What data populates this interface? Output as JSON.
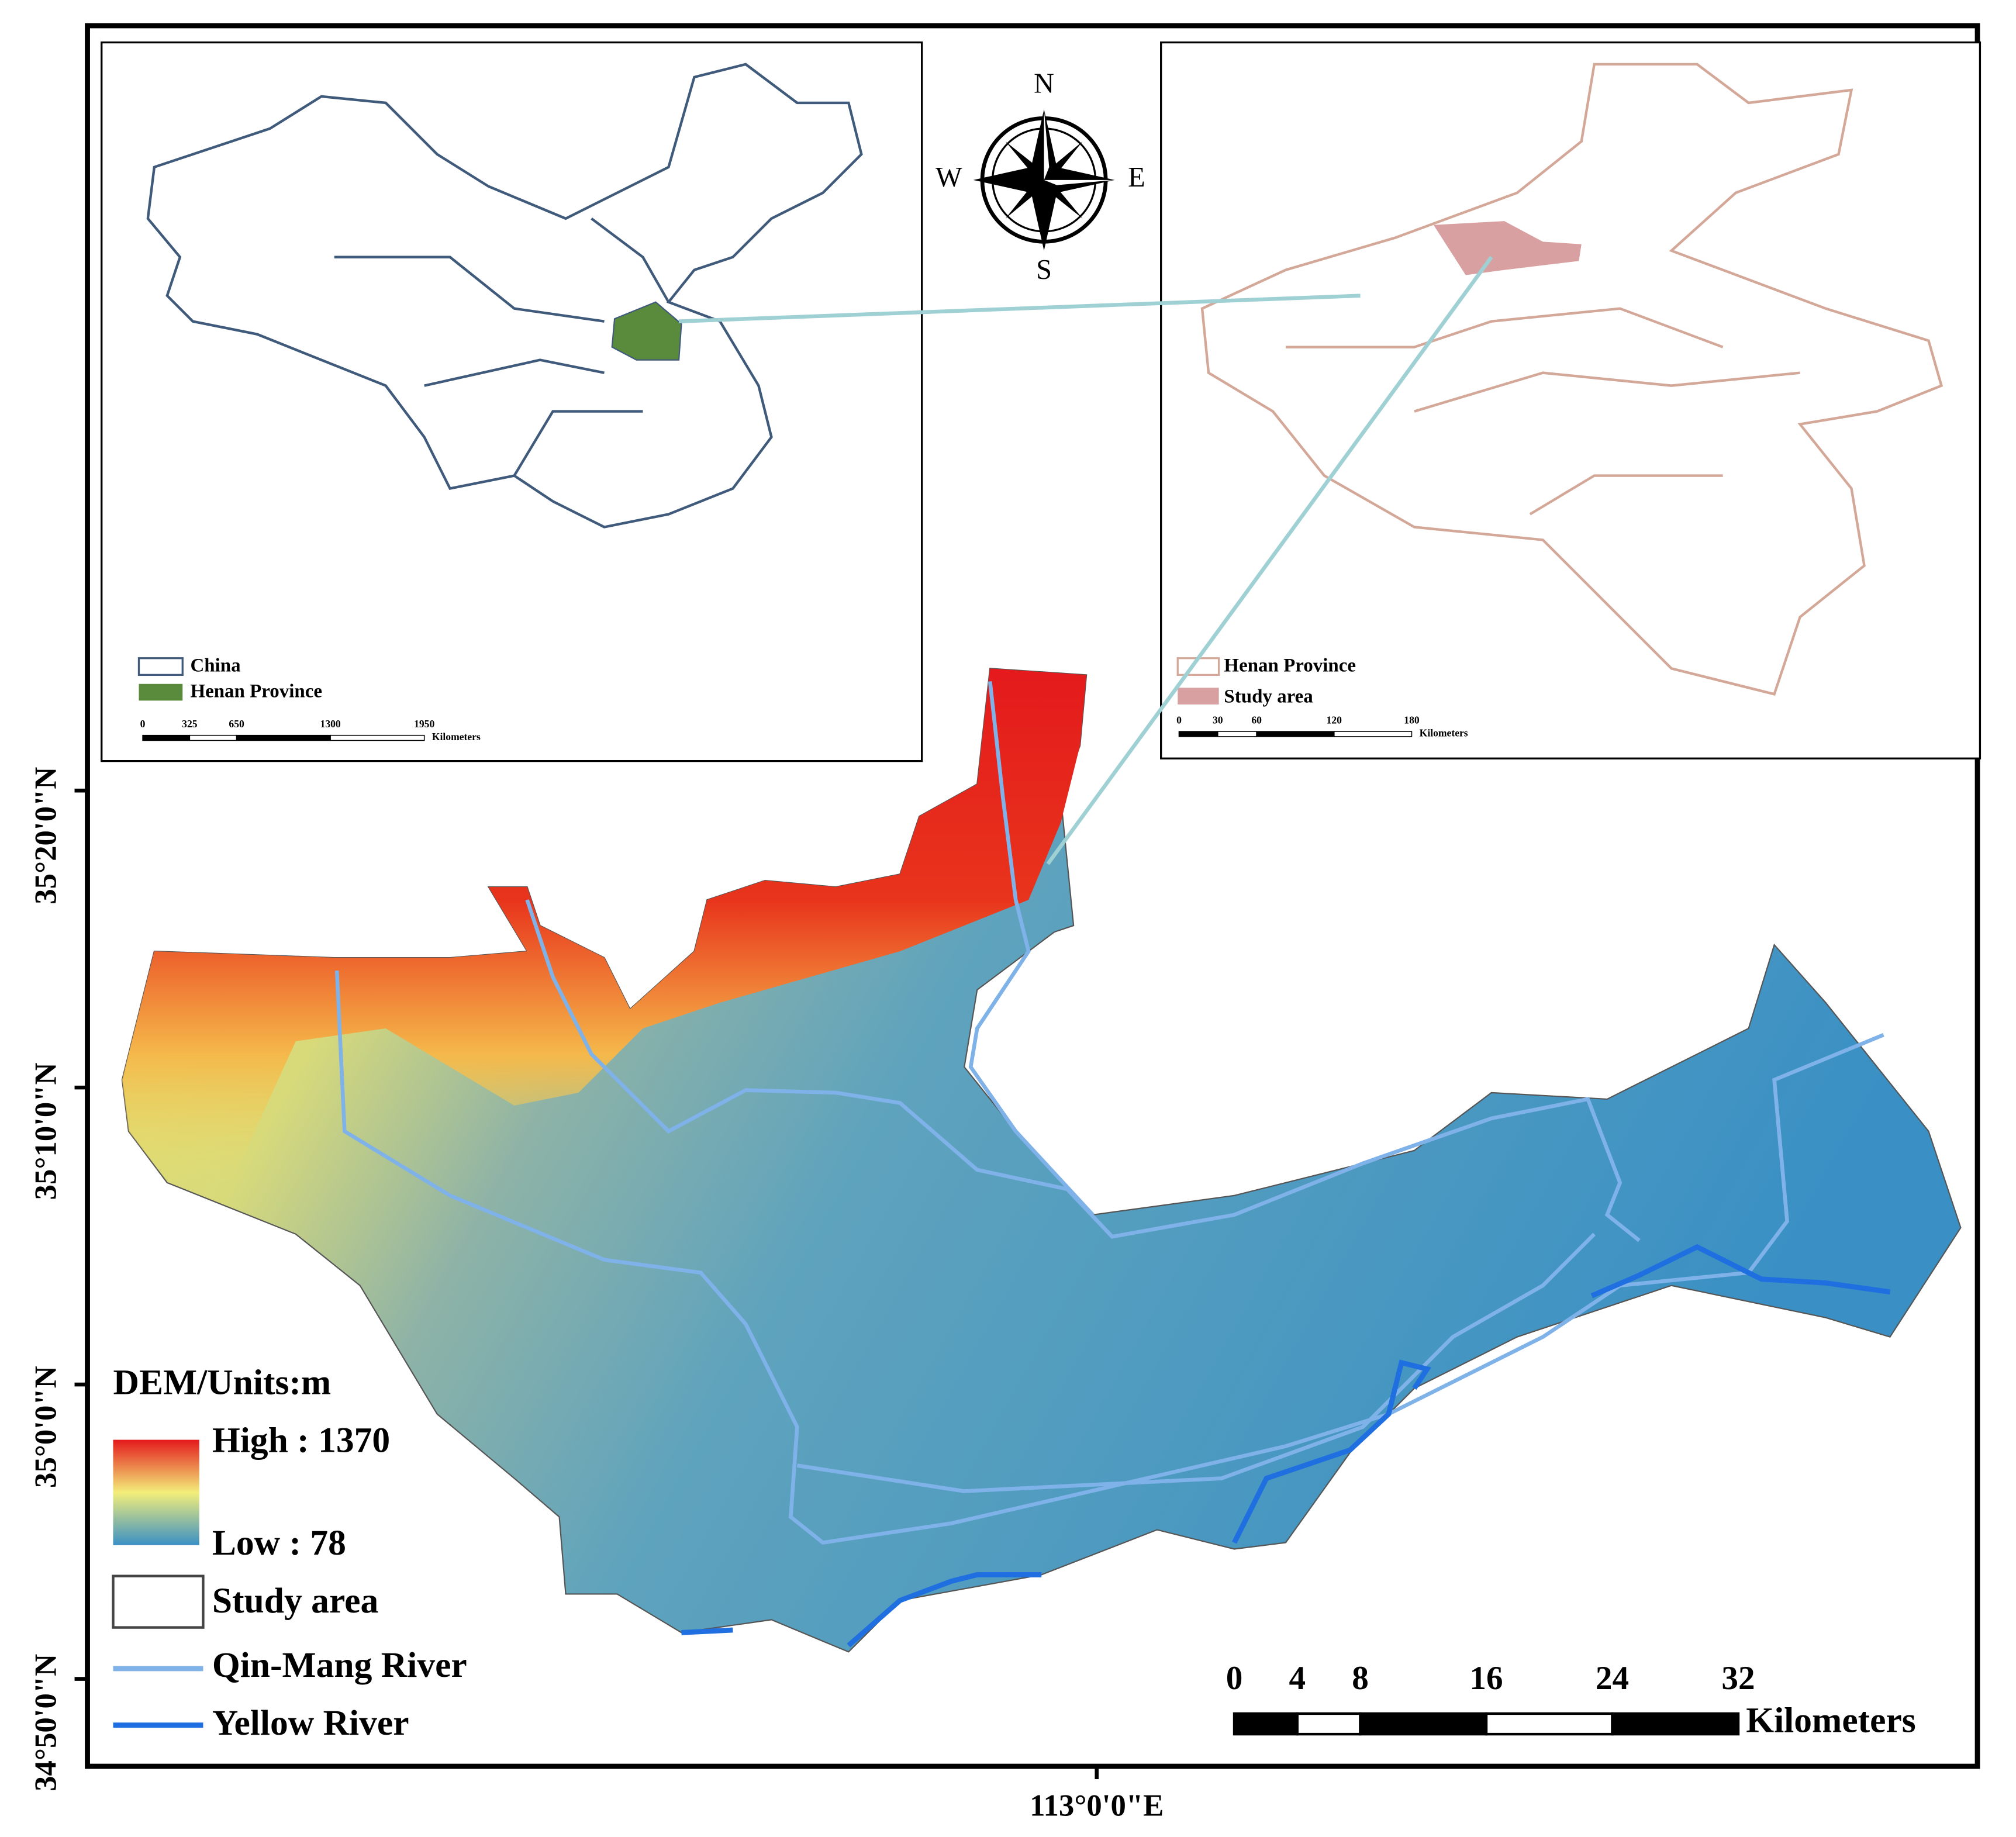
{
  "inset_china": {
    "legend": [
      "China",
      "Henan Province"
    ],
    "scale": {
      "ticks": [
        0,
        325,
        650,
        1300,
        1950
      ],
      "unit": "Kilometers"
    }
  },
  "inset_henan": {
    "legend": [
      "Henan Province",
      "Study area"
    ],
    "scale": {
      "ticks": [
        0,
        30,
        60,
        120,
        180
      ],
      "unit": "Kilometers"
    }
  },
  "compass": {
    "n": "N",
    "s": "S",
    "e": "E",
    "w": "W"
  },
  "map": {
    "lat_labels": [
      "35°20'0\"N",
      "35°10'0\"N",
      "35°0'0\"N",
      "34°50'0\"N"
    ],
    "lon_label": "113°0'0\"E"
  },
  "legend": {
    "title": "DEM/Units:m",
    "high": "High : 1370",
    "low": "Low : 78",
    "items": [
      "Study area",
      "Qin-Mang River",
      "Yellow River"
    ]
  },
  "scale": {
    "ticks": [
      0,
      4,
      8,
      16,
      24,
      32
    ],
    "unit": "Kilometers"
  }
}
